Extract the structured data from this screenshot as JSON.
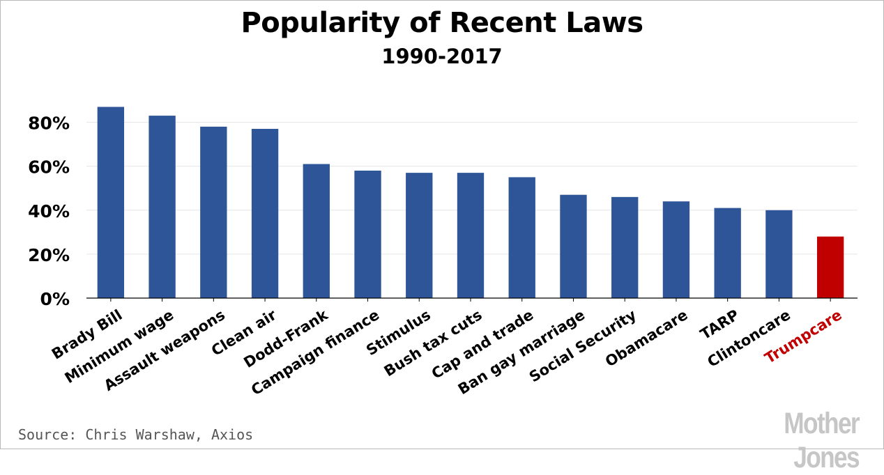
{
  "chart_data": {
    "type": "bar",
    "title": "Popularity of Recent Laws",
    "subtitle": "1990-2017",
    "categories": [
      "Brady Bill",
      "Minimum wage",
      "Assault weapons",
      "Clean air",
      "Dodd-Frank",
      "Campaign finance",
      "Stimulus",
      "Bush tax cuts",
      "Cap and trade",
      "Ban gay marriage",
      "Social Security",
      "Obamacare",
      "TARP",
      "Clintoncare",
      "Trumpcare"
    ],
    "values": [
      87,
      83,
      78,
      77,
      61,
      58,
      57,
      57,
      55,
      47,
      46,
      44,
      41,
      40,
      28
    ],
    "highlight": "Trumpcare",
    "ylim": [
      0,
      90
    ],
    "yticks": [
      0,
      20,
      40,
      60,
      80
    ],
    "ytick_labels": [
      "0%",
      "20%",
      "40%",
      "60%",
      "80%"
    ],
    "xlabel": "",
    "ylabel": "",
    "grid": true,
    "colors": {
      "bar": "#2e5597",
      "highlight": "#c00000",
      "grid": "#e6e6e6"
    }
  },
  "source": "Source: Chris Warshaw, Axios",
  "watermark": "Mother Jones"
}
